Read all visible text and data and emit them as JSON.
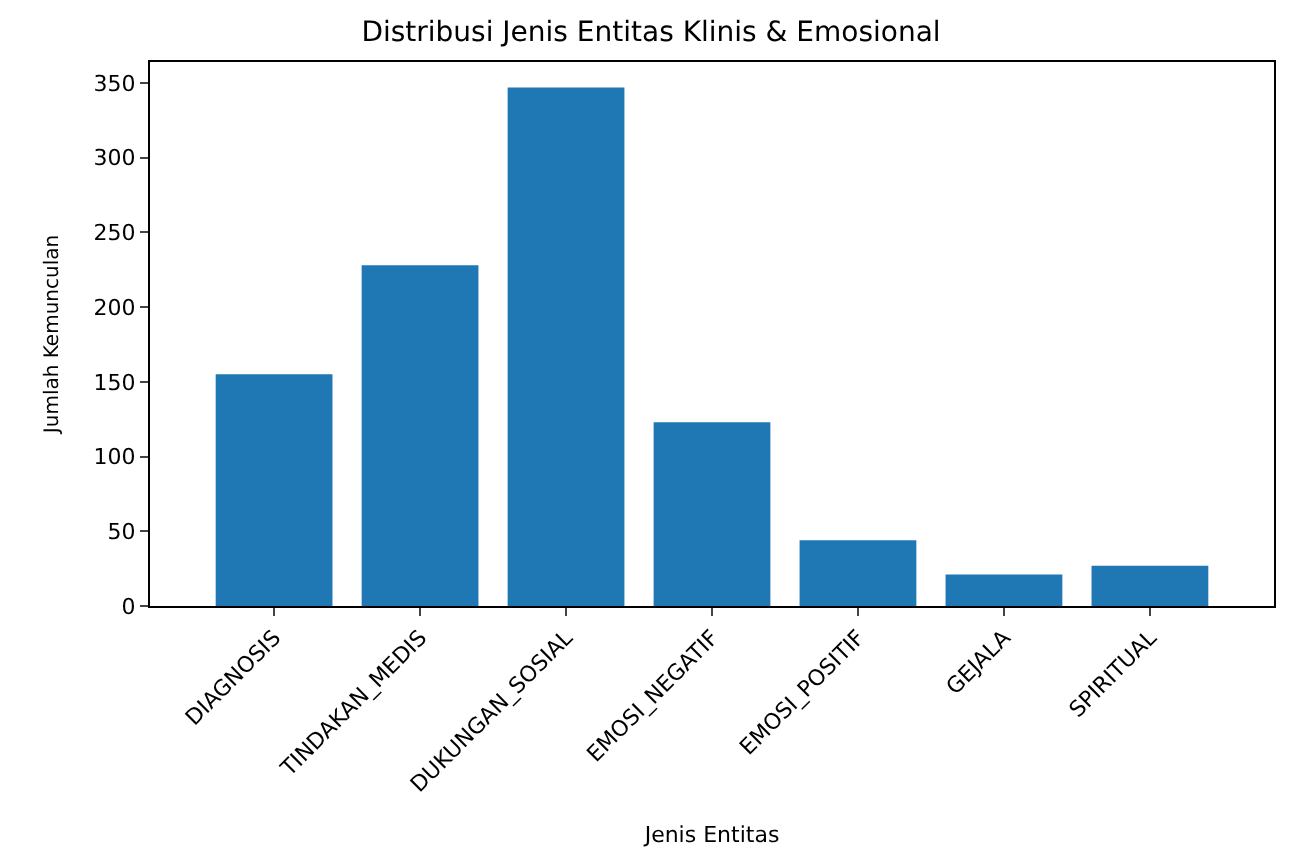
{
  "chart_data": {
    "type": "bar",
    "title": "Distribusi Jenis Entitas Klinis & Emosional",
    "xlabel": "Jenis Entitas",
    "ylabel": "Jumlah Kemunculan",
    "categories": [
      "DIAGNOSIS",
      "TINDAKAN_MEDIS",
      "DUKUNGAN_SOSIAL",
      "EMOSI_NEGATIF",
      "EMOSI_POSITIF",
      "GEJALA",
      "SPIRITUAL"
    ],
    "values": [
      155,
      228,
      347,
      123,
      44,
      21,
      27
    ],
    "color": "#1f77b4",
    "ylim": [
      0,
      364
    ],
    "yticks": [
      0,
      50,
      100,
      150,
      200,
      250,
      300,
      350
    ]
  }
}
